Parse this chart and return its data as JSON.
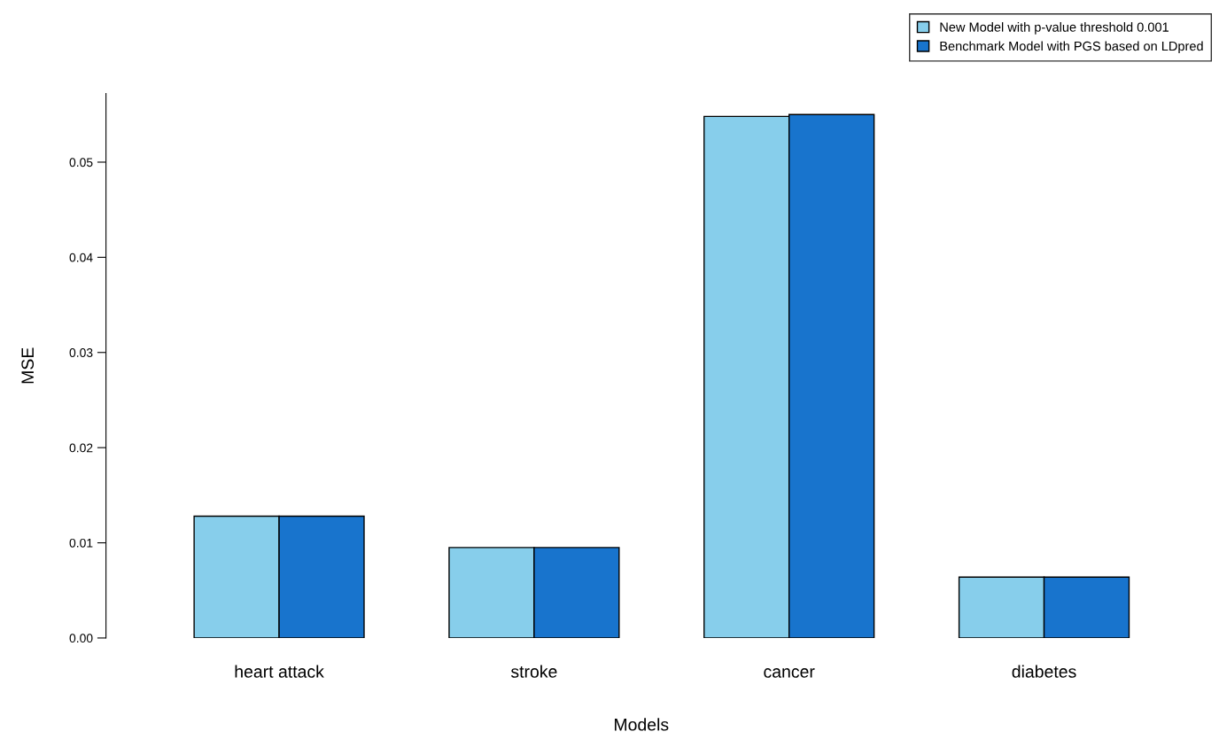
{
  "chart_data": {
    "type": "bar",
    "xlabel": "Models",
    "ylabel": "MSE",
    "categories": [
      "heart attack",
      "stroke",
      "cancer",
      "diabetes"
    ],
    "series": [
      {
        "name": "New Model with p-value threshold 0.001",
        "color": "#87ceeb",
        "values": [
          0.0128,
          0.0095,
          0.0548,
          0.0064
        ]
      },
      {
        "name": "Benchmark Model with PGS based on LDpred",
        "color": "#1874cd",
        "values": [
          0.0128,
          0.0095,
          0.055,
          0.0064
        ]
      }
    ],
    "ylim": [
      0,
      0.0572
    ],
    "yticks": [
      {
        "value": 0,
        "label": "0.00"
      },
      {
        "value": 0.01,
        "label": "0.01"
      },
      {
        "value": 0.02,
        "label": "0.02"
      },
      {
        "value": 0.03,
        "label": "0.03"
      },
      {
        "value": 0.04,
        "label": "0.04"
      },
      {
        "value": 0.05,
        "label": "0.05"
      }
    ],
    "grid": false,
    "legend": "top right"
  }
}
